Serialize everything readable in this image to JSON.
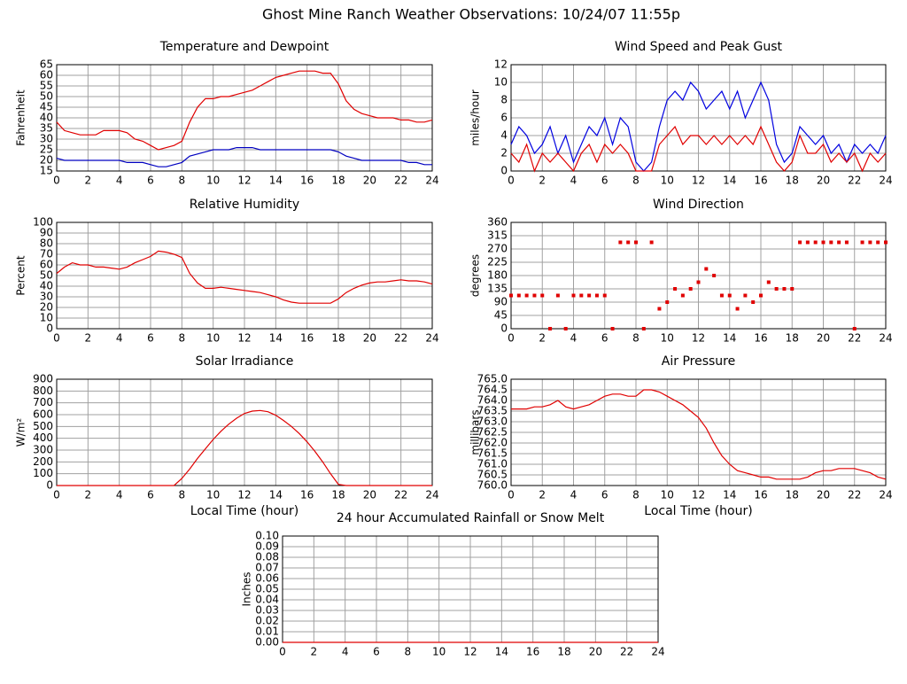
{
  "title": "Ghost Mine Ranch Weather Observations: 10/24/07 11:55p",
  "chart_data": [
    {
      "type": "line",
      "title": "Temperature and Dewpoint",
      "ylabel": "Fahrenheit",
      "xlim": [
        0,
        24
      ],
      "xticks": [
        0,
        2,
        4,
        6,
        8,
        10,
        12,
        14,
        16,
        18,
        20,
        22,
        24
      ],
      "ylim": [
        15,
        65
      ],
      "yticks": [
        15,
        20,
        25,
        30,
        35,
        40,
        45,
        50,
        55,
        60,
        65
      ],
      "grid": true,
      "x": [
        0,
        0.5,
        1,
        1.5,
        2,
        2.5,
        3,
        3.5,
        4,
        4.5,
        5,
        5.5,
        6,
        6.5,
        7,
        7.5,
        8,
        8.5,
        9,
        9.5,
        10,
        10.5,
        11,
        11.5,
        12,
        12.5,
        13,
        13.5,
        14,
        14.5,
        15,
        15.5,
        16,
        16.5,
        17,
        17.5,
        18,
        18.5,
        19,
        19.5,
        20,
        20.5,
        21,
        21.5,
        22,
        22.5,
        23,
        23.5,
        24
      ],
      "series": [
        {
          "color": "#e00000",
          "values": [
            38,
            34,
            33,
            32,
            32,
            32,
            34,
            34,
            34,
            33,
            30,
            29,
            27,
            25,
            26,
            27,
            29,
            38,
            45,
            49,
            49,
            50,
            50,
            51,
            52,
            53,
            55,
            57,
            59,
            60,
            61,
            62,
            62,
            62,
            61,
            61,
            56,
            48,
            44,
            42,
            41,
            40,
            40,
            40,
            39,
            39,
            38,
            38,
            39
          ]
        },
        {
          "color": "#0000c0",
          "values": [
            21,
            20,
            20,
            20,
            20,
            20,
            20,
            20,
            20,
            19,
            19,
            19,
            18,
            17,
            17,
            18,
            19,
            22,
            23,
            24,
            25,
            25,
            25,
            26,
            26,
            26,
            25,
            25,
            25,
            25,
            25,
            25,
            25,
            25,
            25,
            25,
            24,
            22,
            21,
            20,
            20,
            20,
            20,
            20,
            20,
            19,
            19,
            18,
            18
          ]
        }
      ]
    },
    {
      "type": "line",
      "title": "Wind Speed and Peak Gust",
      "ylabel": "miles/hour",
      "xlim": [
        0,
        24
      ],
      "xticks": [
        0,
        2,
        4,
        6,
        8,
        10,
        12,
        14,
        16,
        18,
        20,
        22,
        24
      ],
      "ylim": [
        0,
        12
      ],
      "yticks": [
        0,
        2,
        4,
        6,
        8,
        10,
        12
      ],
      "grid": true,
      "x": [
        0,
        0.5,
        1,
        1.5,
        2,
        2.5,
        3,
        3.5,
        4,
        4.5,
        5,
        5.5,
        6,
        6.5,
        7,
        7.5,
        8,
        8.5,
        9,
        9.5,
        10,
        10.5,
        11,
        11.5,
        12,
        12.5,
        13,
        13.5,
        14,
        14.5,
        15,
        15.5,
        16,
        16.5,
        17,
        17.5,
        18,
        18.5,
        19,
        19.5,
        20,
        20.5,
        21,
        21.5,
        22,
        22.5,
        23,
        23.5,
        24
      ],
      "series": [
        {
          "color": "#0000e0",
          "values": [
            3,
            5,
            4,
            2,
            3,
            5,
            2,
            4,
            1,
            3,
            5,
            4,
            6,
            3,
            6,
            5,
            1,
            0,
            1,
            5,
            8,
            9,
            8,
            10,
            9,
            7,
            8,
            9,
            7,
            9,
            6,
            8,
            10,
            8,
            3,
            1,
            2,
            5,
            4,
            3,
            4,
            2,
            3,
            1,
            3,
            2,
            3,
            2,
            4
          ]
        },
        {
          "color": "#e00000",
          "values": [
            2,
            1,
            3,
            0,
            2,
            1,
            2,
            1,
            0,
            2,
            3,
            1,
            3,
            2,
            3,
            2,
            0,
            0,
            0,
            3,
            4,
            5,
            3,
            4,
            4,
            3,
            4,
            3,
            4,
            3,
            4,
            3,
            5,
            3,
            1,
            0,
            1,
            4,
            2,
            2,
            3,
            1,
            2,
            1,
            2,
            0,
            2,
            1,
            2
          ]
        }
      ]
    },
    {
      "type": "line",
      "title": "Relative Humidity",
      "ylabel": "Percent",
      "xlim": [
        0,
        24
      ],
      "xticks": [
        0,
        2,
        4,
        6,
        8,
        10,
        12,
        14,
        16,
        18,
        20,
        22,
        24
      ],
      "ylim": [
        0,
        100
      ],
      "yticks": [
        0,
        10,
        20,
        30,
        40,
        50,
        60,
        70,
        80,
        90,
        100
      ],
      "grid": true,
      "x": [
        0,
        0.5,
        1,
        1.5,
        2,
        2.5,
        3,
        3.5,
        4,
        4.5,
        5,
        5.5,
        6,
        6.5,
        7,
        7.5,
        8,
        8.5,
        9,
        9.5,
        10,
        10.5,
        11,
        11.5,
        12,
        12.5,
        13,
        13.5,
        14,
        14.5,
        15,
        15.5,
        16,
        16.5,
        17,
        17.5,
        18,
        18.5,
        19,
        19.5,
        20,
        20.5,
        21,
        21.5,
        22,
        22.5,
        23,
        23.5,
        24
      ],
      "series": [
        {
          "color": "#e00000",
          "values": [
            52,
            58,
            62,
            60,
            60,
            58,
            58,
            57,
            56,
            58,
            62,
            65,
            68,
            73,
            72,
            70,
            67,
            52,
            43,
            38,
            38,
            39,
            38,
            37,
            36,
            35,
            34,
            32,
            30,
            27,
            25,
            24,
            24,
            24,
            24,
            24,
            28,
            34,
            38,
            41,
            43,
            44,
            44,
            45,
            46,
            45,
            45,
            44,
            42
          ]
        }
      ]
    },
    {
      "type": "scatter",
      "title": "Wind Direction",
      "ylabel": "degrees",
      "xlim": [
        0,
        24
      ],
      "xticks": [
        0,
        2,
        4,
        6,
        8,
        10,
        12,
        14,
        16,
        18,
        20,
        22,
        24
      ],
      "ylim": [
        0,
        360
      ],
      "yticks": [
        0,
        45,
        90,
        135,
        180,
        225,
        270,
        315,
        360
      ],
      "grid": true,
      "x": [
        0,
        0.5,
        1,
        1.5,
        2,
        2.5,
        3,
        3.5,
        4,
        4.5,
        5,
        5.5,
        6,
        6.5,
        7,
        7.5,
        8,
        8.5,
        9,
        9.5,
        10,
        10.5,
        11,
        11.5,
        12,
        12.5,
        13,
        13.5,
        14,
        14.5,
        15,
        15.5,
        16,
        16.5,
        17,
        17.5,
        18,
        18.5,
        19,
        19.5,
        20,
        20.5,
        21,
        21.5,
        22,
        22.5,
        23,
        23.5,
        24
      ],
      "series": [
        {
          "color": "#e00000",
          "values": [
            112.5,
            112.5,
            112.5,
            112.5,
            112.5,
            0,
            112.5,
            0,
            112.5,
            112.5,
            112.5,
            112.5,
            112.5,
            0,
            292.5,
            292.5,
            292.5,
            0,
            292.5,
            67.5,
            90,
            135,
            112.5,
            135,
            157.5,
            202.5,
            180,
            112.5,
            112.5,
            67.5,
            112.5,
            90,
            112.5,
            157.5,
            135,
            135,
            135,
            292.5,
            292.5,
            292.5,
            292.5,
            292.5,
            292.5,
            292.5,
            0,
            292.5,
            292.5,
            292.5,
            292.5
          ]
        }
      ]
    },
    {
      "type": "line",
      "title": "Solar Irradiance",
      "ylabel": "W/m²",
      "xlabel": "Local Time (hour)",
      "xlim": [
        0,
        24
      ],
      "xticks": [
        0,
        2,
        4,
        6,
        8,
        10,
        12,
        14,
        16,
        18,
        20,
        22,
        24
      ],
      "ylim": [
        0,
        900
      ],
      "yticks": [
        0,
        100,
        200,
        300,
        400,
        500,
        600,
        700,
        800,
        900
      ],
      "grid": true,
      "x": [
        0,
        0.5,
        1,
        1.5,
        2,
        2.5,
        3,
        3.5,
        4,
        4.5,
        5,
        5.5,
        6,
        6.5,
        7,
        7.5,
        8,
        8.5,
        9,
        9.5,
        10,
        10.5,
        11,
        11.5,
        12,
        12.5,
        13,
        13.5,
        14,
        14.5,
        15,
        15.5,
        16,
        16.5,
        17,
        17.5,
        18,
        18.5,
        19,
        19.5,
        20,
        20.5,
        21,
        21.5,
        22,
        22.5,
        23,
        23.5,
        24
      ],
      "series": [
        {
          "color": "#e00000",
          "values": [
            0,
            0,
            0,
            0,
            0,
            0,
            0,
            0,
            0,
            0,
            0,
            0,
            0,
            0,
            0,
            0,
            60,
            140,
            230,
            310,
            390,
            460,
            520,
            570,
            610,
            630,
            635,
            625,
            595,
            550,
            500,
            440,
            370,
            290,
            200,
            100,
            10,
            0,
            0,
            0,
            0,
            0,
            0,
            0,
            0,
            0,
            0,
            0,
            0
          ]
        }
      ]
    },
    {
      "type": "line",
      "title": "Air Pressure",
      "ylabel": "millibars",
      "xlabel": "Local Time (hour)",
      "xlim": [
        0,
        24
      ],
      "xticks": [
        0,
        2,
        4,
        6,
        8,
        10,
        12,
        14,
        16,
        18,
        20,
        22,
        24
      ],
      "ylim": [
        760,
        765
      ],
      "yticks": [
        {
          "value": 760,
          "label": "760.0"
        },
        760.5,
        {
          "value": 761,
          "label": "761.0"
        },
        761.5,
        {
          "value": 762,
          "label": "762.0"
        },
        762.5,
        {
          "value": 763,
          "label": "763.0"
        },
        763.5,
        {
          "value": 764,
          "label": "764.0"
        },
        764.5,
        {
          "value": 765,
          "label": "765.0"
        }
      ],
      "grid": true,
      "x": [
        0,
        0.5,
        1,
        1.5,
        2,
        2.5,
        3,
        3.5,
        4,
        4.5,
        5,
        5.5,
        6,
        6.5,
        7,
        7.5,
        8,
        8.5,
        9,
        9.5,
        10,
        10.5,
        11,
        11.5,
        12,
        12.5,
        13,
        13.5,
        14,
        14.5,
        15,
        15.5,
        16,
        16.5,
        17,
        17.5,
        18,
        18.5,
        19,
        19.5,
        20,
        20.5,
        21,
        21.5,
        22,
        22.5,
        23,
        23.5,
        24
      ],
      "series": [
        {
          "color": "#e00000",
          "values": [
            763.6,
            763.6,
            763.6,
            763.7,
            763.7,
            763.8,
            764.0,
            763.7,
            763.6,
            763.7,
            763.8,
            764.0,
            764.2,
            764.3,
            764.3,
            764.2,
            764.2,
            764.5,
            764.5,
            764.4,
            764.2,
            764.0,
            763.8,
            763.5,
            763.2,
            762.7,
            762.0,
            761.4,
            761.0,
            760.7,
            760.6,
            760.5,
            760.4,
            760.4,
            760.3,
            760.3,
            760.3,
            760.3,
            760.4,
            760.6,
            760.7,
            760.7,
            760.8,
            760.8,
            760.8,
            760.7,
            760.6,
            760.4,
            760.3
          ]
        }
      ]
    },
    {
      "type": "line",
      "title": "24 hour Accumulated Rainfall or Snow Melt",
      "ylabel": "Inches",
      "xlim": [
        0,
        24
      ],
      "xticks": [
        0,
        2,
        4,
        6,
        8,
        10,
        12,
        14,
        16,
        18,
        20,
        22,
        24
      ],
      "ylim": [
        0,
        0.1
      ],
      "yticks": [
        {
          "value": 0,
          "label": "0.00"
        },
        0.01,
        0.02,
        0.03,
        0.04,
        0.05,
        0.06,
        0.07,
        0.08,
        0.09,
        {
          "value": 0.1,
          "label": "0.10"
        }
      ],
      "grid": true,
      "x": [
        0,
        24
      ],
      "series": [
        {
          "color": "#e00000",
          "values": [
            0,
            0
          ]
        }
      ]
    }
  ]
}
